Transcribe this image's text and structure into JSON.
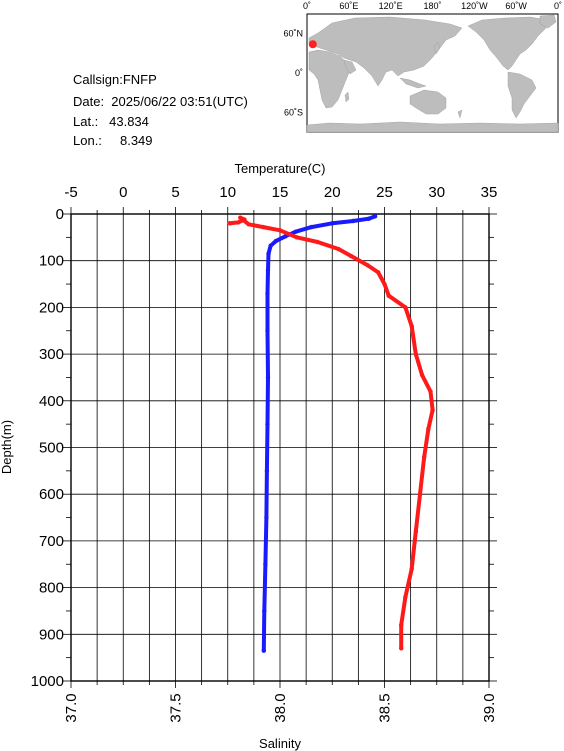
{
  "info": {
    "callsign": "Callsign:FNFP",
    "date": "Date:  2025/06/22 03:51(UTC)",
    "lat": "Lat.:   43.834",
    "lon": "Lon.:     8.349"
  },
  "map": {
    "top_labels": [
      "0˚",
      "60˚E",
      "120˚E",
      "180˚",
      "120˚W",
      "60˚W",
      "0˚"
    ],
    "left_labels": [
      "60˚N",
      "0˚",
      "60˚S"
    ],
    "marker": {
      "lat": 43.834,
      "lon": 8.349,
      "color": "#ff2020"
    },
    "land_color": "#bdbdbd",
    "ocean_color": "#ffffff"
  },
  "chart_data": {
    "type": "line",
    "title": "",
    "temperature_axis": {
      "label": "Temperature(C)",
      "range": [
        -5,
        35
      ],
      "ticks": [
        "-5",
        "0",
        "5",
        "10",
        "15",
        "20",
        "25",
        "30",
        "35"
      ]
    },
    "salinity_axis": {
      "label": "Salinity",
      "range": [
        37.0,
        39.0
      ],
      "ticks": [
        "37.0",
        "37.5",
        "38.0",
        "38.5",
        "39.0"
      ]
    },
    "depth_axis": {
      "label": "Depth(m)",
      "range": [
        0,
        1000
      ],
      "ticks": [
        "0",
        "100",
        "200",
        "300",
        "400",
        "500",
        "600",
        "700",
        "800",
        "900",
        "1000"
      ]
    },
    "grid": true,
    "series": [
      {
        "name": "Temperature",
        "axis": "temperature",
        "color": "#1a1aff",
        "points": [
          {
            "x": 24.1,
            "depth": 5
          },
          {
            "x": 23.5,
            "depth": 10
          },
          {
            "x": 22.0,
            "depth": 15
          },
          {
            "x": 20.0,
            "depth": 20
          },
          {
            "x": 18.0,
            "depth": 28
          },
          {
            "x": 16.5,
            "depth": 38
          },
          {
            "x": 15.5,
            "depth": 48
          },
          {
            "x": 14.6,
            "depth": 58
          },
          {
            "x": 14.1,
            "depth": 68
          },
          {
            "x": 13.9,
            "depth": 85
          },
          {
            "x": 13.85,
            "depth": 120
          },
          {
            "x": 13.8,
            "depth": 170
          },
          {
            "x": 13.8,
            "depth": 250
          },
          {
            "x": 13.85,
            "depth": 350
          },
          {
            "x": 13.8,
            "depth": 450
          },
          {
            "x": 13.75,
            "depth": 550
          },
          {
            "x": 13.7,
            "depth": 650
          },
          {
            "x": 13.6,
            "depth": 750
          },
          {
            "x": 13.5,
            "depth": 850
          },
          {
            "x": 13.45,
            "depth": 935
          }
        ]
      },
      {
        "name": "Salinity",
        "axis": "salinity",
        "color": "#ff1a1a",
        "points": [
          {
            "x": 37.76,
            "depth": 20
          },
          {
            "x": 37.8,
            "depth": 18
          },
          {
            "x": 37.83,
            "depth": 12
          },
          {
            "x": 37.81,
            "depth": 8
          },
          {
            "x": 37.85,
            "depth": 22
          },
          {
            "x": 37.92,
            "depth": 28
          },
          {
            "x": 38.0,
            "depth": 35
          },
          {
            "x": 38.08,
            "depth": 50
          },
          {
            "x": 38.18,
            "depth": 60
          },
          {
            "x": 38.28,
            "depth": 75
          },
          {
            "x": 38.34,
            "depth": 90
          },
          {
            "x": 38.42,
            "depth": 110
          },
          {
            "x": 38.47,
            "depth": 125
          },
          {
            "x": 38.5,
            "depth": 150
          },
          {
            "x": 38.52,
            "depth": 175
          },
          {
            "x": 38.6,
            "depth": 200
          },
          {
            "x": 38.63,
            "depth": 240
          },
          {
            "x": 38.65,
            "depth": 300
          },
          {
            "x": 38.68,
            "depth": 345
          },
          {
            "x": 38.72,
            "depth": 380
          },
          {
            "x": 38.73,
            "depth": 420
          },
          {
            "x": 38.71,
            "depth": 460
          },
          {
            "x": 38.69,
            "depth": 520
          },
          {
            "x": 38.67,
            "depth": 600
          },
          {
            "x": 38.65,
            "depth": 680
          },
          {
            "x": 38.63,
            "depth": 760
          },
          {
            "x": 38.6,
            "depth": 820
          },
          {
            "x": 38.58,
            "depth": 880
          },
          {
            "x": 38.58,
            "depth": 930
          }
        ]
      }
    ]
  }
}
